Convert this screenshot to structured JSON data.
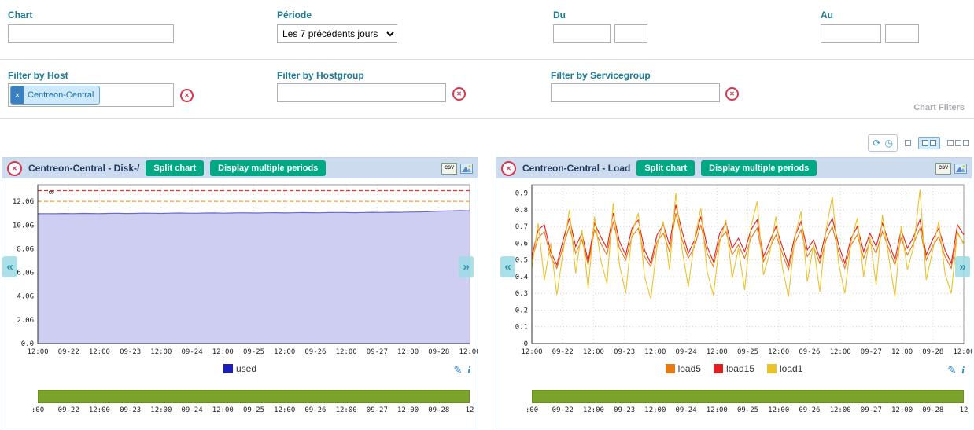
{
  "filters": {
    "chart_label": "Chart",
    "chart_value": "",
    "periode_label": "Période",
    "periode_value": "Les 7 précédents jours",
    "du_label": "Du",
    "du_date": "",
    "du_time": "",
    "au_label": "Au",
    "au_date": "",
    "au_time": "",
    "host_label": "Filter by Host",
    "host_tag": "Centreon-Central",
    "hostgroup_label": "Filter by Hostgroup",
    "hostgroup_value": "",
    "servicegroup_label": "Filter by Servicegroup",
    "servicegroup_value": "",
    "panel_caption": "Chart Filters"
  },
  "buttons": {
    "split": "Split chart",
    "multiple": "Display multiple periods"
  },
  "icons": {
    "close": "✕",
    "clear": "✕",
    "chip_remove": "✕",
    "refresh": "⟳",
    "auto_refresh": "◷",
    "csv": "CSV",
    "pencil": "✎",
    "info": "i",
    "prev": "«",
    "next": "»"
  },
  "colors": {
    "accent_teal": "#00a884",
    "header_bg": "#ccdcee",
    "label_teal": "#1d7b93",
    "close_red": "#d4374e",
    "status_green": "#7ba32b",
    "used_fill": "#c9c9f2",
    "warning_orange": "#f0a030",
    "critical_red": "#e03030"
  },
  "chart_data": [
    {
      "type": "area",
      "title": "Centreon-Central - Disk-/",
      "ylim": [
        0,
        13.4
      ],
      "yticks": [
        {
          "v": 0,
          "label": "0.0"
        },
        {
          "v": 2,
          "label": "2.0G"
        },
        {
          "v": 4,
          "label": "4.0G"
        },
        {
          "v": 6,
          "label": "6.0G"
        },
        {
          "v": 8,
          "label": "8.0G"
        },
        {
          "v": 10,
          "label": "10.0G"
        },
        {
          "v": 12,
          "label": "12.0G"
        }
      ],
      "xticks": [
        "12:00",
        "09-22",
        "12:00",
        "09-23",
        "12:00",
        "09-24",
        "12:00",
        "09-25",
        "12:00",
        "09-26",
        "12:00",
        "09-27",
        "12:00",
        "09-28",
        "12:00"
      ],
      "bottom_ticks": [
        ":00",
        "09-22",
        "12:00",
        "09-23",
        "12:00",
        "09-24",
        "12:00",
        "09-25",
        "12:00",
        "09-26",
        "12:00",
        "09-27",
        "12:00",
        "09-28",
        "12"
      ],
      "marker": "8",
      "thresholds": [
        {
          "name": "warning",
          "value": 12.0,
          "color": "#f0a030"
        },
        {
          "name": "critical",
          "value": 12.9,
          "color": "#e03030"
        }
      ],
      "series": [
        {
          "name": "used",
          "legend_color": "#1d1db8",
          "fill": "#c9c9f2",
          "stroke": "#6a6ad0",
          "values": [
            10.95,
            10.96,
            10.95,
            10.97,
            10.96,
            10.98,
            10.97,
            10.96,
            10.98,
            10.99,
            10.97,
            10.98,
            11.0,
            10.99,
            10.98,
            11.0,
            11.01,
            11.0,
            10.99,
            11.01,
            11.02,
            11.0,
            11.01,
            11.03,
            11.02,
            11.01,
            11.03,
            11.04,
            11.02,
            11.03,
            11.05,
            11.04,
            11.03,
            11.05,
            11.06,
            11.05,
            11.04,
            11.06,
            11.07,
            11.06,
            11.08,
            11.07,
            11.09,
            11.1,
            11.12,
            11.15,
            11.18,
            11.2,
            11.22,
            11.2
          ]
        }
      ]
    },
    {
      "type": "line",
      "title": "Centreon-Central - Load",
      "ylim": [
        0,
        0.95
      ],
      "yticks": [
        {
          "v": 0,
          "label": "0"
        },
        {
          "v": 0.1,
          "label": "0.1"
        },
        {
          "v": 0.2,
          "label": "0.2"
        },
        {
          "v": 0.3,
          "label": "0.3"
        },
        {
          "v": 0.4,
          "label": "0.4"
        },
        {
          "v": 0.5,
          "label": "0.5"
        },
        {
          "v": 0.6,
          "label": "0.6"
        },
        {
          "v": 0.7,
          "label": "0.7"
        },
        {
          "v": 0.8,
          "label": "0.8"
        },
        {
          "v": 0.9,
          "label": "0.9"
        }
      ],
      "xticks": [
        "12:00",
        "09-22",
        "12:00",
        "09-23",
        "12:00",
        "09-24",
        "12:00",
        "09-25",
        "12:00",
        "09-26",
        "12:00",
        "09-27",
        "12:00",
        "09-28",
        "12:00"
      ],
      "bottom_ticks": [
        ":00",
        "09-22",
        "12:00",
        "09-23",
        "12:00",
        "09-24",
        "12:00",
        "09-25",
        "12:00",
        "09-26",
        "12:00",
        "09-27",
        "12:00",
        "09-28",
        "12"
      ],
      "series": [
        {
          "name": "load5",
          "color": "#e87a16",
          "legend_color": "#e87a16",
          "values": [
            0.5,
            0.63,
            0.67,
            0.52,
            0.45,
            0.58,
            0.7,
            0.54,
            0.62,
            0.47,
            0.68,
            0.6,
            0.53,
            0.73,
            0.57,
            0.5,
            0.64,
            0.69,
            0.52,
            0.46,
            0.61,
            0.66,
            0.55,
            0.78,
            0.62,
            0.51,
            0.58,
            0.71,
            0.54,
            0.46,
            0.62,
            0.67,
            0.53,
            0.59,
            0.51,
            0.63,
            0.69,
            0.49,
            0.57,
            0.65,
            0.54,
            0.44,
            0.6,
            0.68,
            0.52,
            0.58,
            0.48,
            0.62,
            0.7,
            0.55,
            0.45,
            0.59,
            0.65,
            0.51,
            0.61,
            0.54,
            0.67,
            0.57,
            0.47,
            0.63,
            0.53,
            0.6,
            0.69,
            0.5,
            0.58,
            0.64,
            0.52,
            0.45,
            0.66,
            0.6
          ]
        },
        {
          "name": "load15",
          "color": "#e02020",
          "legend_color": "#e02020",
          "values": [
            0.52,
            0.68,
            0.71,
            0.55,
            0.47,
            0.62,
            0.75,
            0.58,
            0.66,
            0.49,
            0.72,
            0.64,
            0.57,
            0.78,
            0.61,
            0.53,
            0.69,
            0.74,
            0.56,
            0.48,
            0.65,
            0.71,
            0.59,
            0.83,
            0.67,
            0.54,
            0.62,
            0.76,
            0.58,
            0.49,
            0.66,
            0.72,
            0.57,
            0.63,
            0.55,
            0.68,
            0.74,
            0.52,
            0.61,
            0.7,
            0.58,
            0.47,
            0.64,
            0.73,
            0.56,
            0.62,
            0.51,
            0.67,
            0.75,
            0.59,
            0.48,
            0.63,
            0.7,
            0.55,
            0.66,
            0.58,
            0.72,
            0.61,
            0.5,
            0.68,
            0.57,
            0.64,
            0.74,
            0.53,
            0.62,
            0.69,
            0.56,
            0.48,
            0.71,
            0.65
          ]
        },
        {
          "name": "load1",
          "color": "#ecc22a",
          "legend_color": "#ecc22a",
          "values": [
            0.45,
            0.72,
            0.38,
            0.6,
            0.29,
            0.55,
            0.8,
            0.42,
            0.68,
            0.33,
            0.76,
            0.5,
            0.36,
            0.84,
            0.47,
            0.3,
            0.66,
            0.78,
            0.4,
            0.27,
            0.58,
            0.73,
            0.44,
            0.9,
            0.56,
            0.34,
            0.62,
            0.81,
            0.43,
            0.29,
            0.6,
            0.74,
            0.39,
            0.57,
            0.32,
            0.7,
            0.85,
            0.41,
            0.54,
            0.76,
            0.46,
            0.28,
            0.63,
            0.79,
            0.37,
            0.59,
            0.31,
            0.68,
            0.88,
            0.48,
            0.3,
            0.61,
            0.75,
            0.4,
            0.64,
            0.35,
            0.77,
            0.52,
            0.28,
            0.7,
            0.44,
            0.58,
            0.92,
            0.38,
            0.55,
            0.73,
            0.42,
            0.3,
            0.67,
            0.59
          ]
        }
      ]
    }
  ]
}
